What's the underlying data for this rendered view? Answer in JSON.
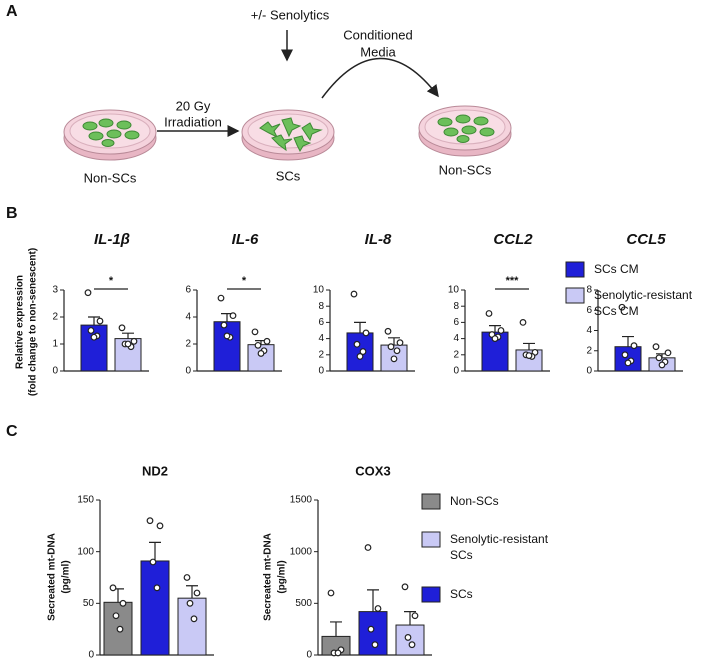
{
  "panel_labels": [
    "A",
    "B",
    "C"
  ],
  "diagram": {
    "senolytics": "+/- Senolytics",
    "conditioned_media": [
      "Conditioned",
      "Media"
    ],
    "irradiation": [
      "20 Gy",
      "Irradiation"
    ],
    "dish_labels": [
      "Non-SCs",
      "SCs",
      "Non-SCs"
    ]
  },
  "legend_b": [
    {
      "name": [
        "SCs CM"
      ],
      "color": "#1f1fd8"
    },
    {
      "name": [
        "Senolytic-resistant",
        "SCs CM"
      ],
      "color": "#c9c9f5"
    }
  ],
  "legend_c": [
    {
      "name": [
        "Non-SCs"
      ],
      "color": "#8a8a8a"
    },
    {
      "name": [
        "Senolytic-resistant",
        "SCs"
      ],
      "color": "#c9c9f5"
    },
    {
      "name": [
        "SCs"
      ],
      "color": "#1f1fd8"
    }
  ],
  "chart_data": [
    {
      "type": "bar",
      "title": "IL-1β",
      "ylabel": [
        "Relative expression",
        "(fold change to non-senescent)"
      ],
      "colors": [
        "#1f1fd8",
        "#c9c9f5"
      ],
      "values": [
        1.7,
        1.2
      ],
      "errors": [
        0.3,
        0.2
      ],
      "points": [
        [
          2.9,
          1.85,
          1.5,
          1.3,
          1.25
        ],
        [
          1.6,
          1.1,
          1.0,
          0.9,
          1.0
        ]
      ],
      "significance": "*",
      "ylim": [
        0,
        3
      ],
      "yticks": [
        0,
        1,
        2,
        3
      ]
    },
    {
      "type": "bar",
      "title": "IL-6",
      "colors": [
        "#1f1fd8",
        "#c9c9f5"
      ],
      "values": [
        3.65,
        1.95
      ],
      "errors": [
        0.6,
        0.3
      ],
      "points": [
        [
          5.4,
          4.1,
          3.4,
          2.5,
          2.6
        ],
        [
          2.9,
          2.2,
          1.9,
          1.5,
          1.3
        ]
      ],
      "significance": "*",
      "ylim": [
        0,
        6
      ],
      "yticks": [
        0,
        2,
        4,
        6
      ]
    },
    {
      "type": "bar",
      "title": "IL-8",
      "colors": [
        "#1f1fd8",
        "#c9c9f5"
      ],
      "values": [
        4.7,
        3.2
      ],
      "errors": [
        1.3,
        0.9
      ],
      "points": [
        [
          9.5,
          4.7,
          3.3,
          2.4,
          1.8
        ],
        [
          4.9,
          3.5,
          3.0,
          2.5,
          1.5
        ]
      ],
      "ylim": [
        0,
        10
      ],
      "yticks": [
        0,
        2,
        4,
        6,
        8,
        10
      ]
    },
    {
      "type": "bar",
      "title": "CCL2",
      "colors": [
        "#1f1fd8",
        "#c9c9f5"
      ],
      "values": [
        4.8,
        2.6
      ],
      "errors": [
        0.8,
        0.8
      ],
      "points": [
        [
          7.1,
          5.0,
          4.5,
          4.2,
          4.0
        ],
        [
          6.0,
          2.3,
          2.0,
          1.8,
          1.9
        ]
      ],
      "significance": "***",
      "ylim": [
        0,
        10
      ],
      "yticks": [
        0,
        2,
        4,
        6,
        8,
        10
      ]
    },
    {
      "type": "bar",
      "title": "CCL5",
      "colors": [
        "#1f1fd8",
        "#c9c9f5"
      ],
      "values": [
        2.4,
        1.3
      ],
      "errors": [
        1.0,
        0.4
      ],
      "points": [
        [
          6.3,
          2.5,
          1.6,
          1.0,
          0.8
        ],
        [
          2.4,
          1.8,
          1.3,
          0.9,
          0.6
        ]
      ],
      "ylim": [
        0,
        8
      ],
      "yticks": [
        0,
        2,
        4,
        6,
        8
      ]
    },
    {
      "type": "bar",
      "title": "ND2",
      "ylabel": [
        "Secreated mt-DNA",
        "(pg/ml)"
      ],
      "colors": [
        "#8a8a8a",
        "#1f1fd8",
        "#c9c9f5"
      ],
      "values": [
        51,
        91,
        55
      ],
      "errors": [
        13,
        18,
        12
      ],
      "points": [
        [
          65,
          50,
          38,
          25
        ],
        [
          130,
          125,
          90,
          65
        ],
        [
          75,
          60,
          50,
          35
        ]
      ],
      "ylim": [
        0,
        150
      ],
      "yticks": [
        0,
        50,
        100,
        150
      ]
    },
    {
      "type": "bar",
      "title": "COX3",
      "ylabel": [
        "Secreated mt-DNA",
        "(pg/ml)"
      ],
      "colors": [
        "#8a8a8a",
        "#1f1fd8",
        "#c9c9f5"
      ],
      "values": [
        180,
        420,
        290
      ],
      "errors": [
        140,
        210,
        130
      ],
      "points": [
        [
          600,
          50,
          20,
          20
        ],
        [
          1040,
          450,
          250,
          100
        ],
        [
          660,
          380,
          170,
          100
        ]
      ],
      "ylim": [
        0,
        1500
      ],
      "yticks": [
        0,
        500,
        1000,
        1500
      ]
    }
  ]
}
